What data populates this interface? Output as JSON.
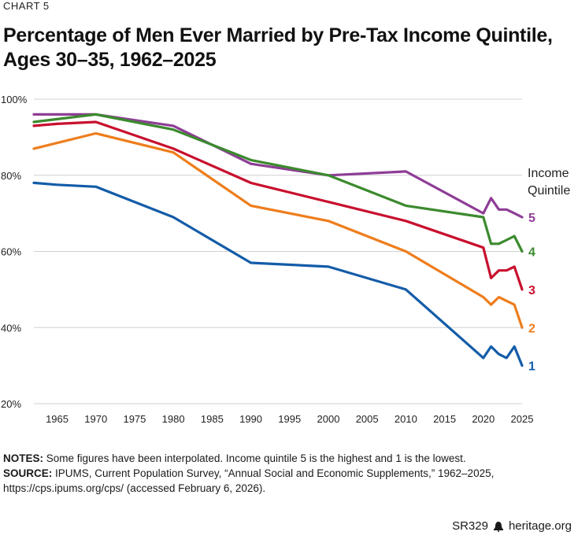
{
  "header": {
    "chart_label": "CHART 5",
    "title": "Percentage of Men Ever Married by Pre-Tax Income Quintile, Ages 30–35, 1962–2025"
  },
  "notes": {
    "notes_label": "NOTES:",
    "notes_text": "Some figures have been interpolated. Income quintile 5 is the highest and 1 is the lowest.",
    "source_label": "SOURCE:",
    "source_text": "IPUMS, Current Population Survey, “Annual Social and Economic Supplements,” 1962–2025, https://cps.ipums.org/cps/ (accessed February 6, 2026)."
  },
  "footer": {
    "report_id": "SR329",
    "site": "heritage.org"
  },
  "chart_data": {
    "type": "line",
    "xlim": [
      1962,
      2025
    ],
    "ylim": [
      20,
      100
    ],
    "x_ticks": [
      1965,
      1970,
      1975,
      1980,
      1985,
      1990,
      1995,
      2000,
      2005,
      2010,
      2015,
      2020,
      2025
    ],
    "y_ticks": [
      20,
      40,
      60,
      80,
      100
    ],
    "y_tick_labels": [
      "20%",
      "40%",
      "60%",
      "80%",
      "100%"
    ],
    "grid": "horizontal",
    "legend_title": "Income Quintile",
    "legend_placement": "right, at line ends",
    "series": [
      {
        "name": "5",
        "color": "#8e3d96",
        "x": [
          1962,
          1970,
          1980,
          1990,
          2000,
          2010,
          2020,
          2021,
          2022,
          2023,
          2024,
          2025
        ],
        "values": [
          96,
          96,
          93,
          83,
          80,
          81,
          70,
          74,
          71,
          71,
          70,
          69
        ]
      },
      {
        "name": "4",
        "color": "#3c8a2e",
        "x": [
          1962,
          1970,
          1980,
          1990,
          2000,
          2010,
          2020,
          2021,
          2022,
          2023,
          2024,
          2025
        ],
        "values": [
          94,
          96,
          92,
          84,
          80,
          72,
          69,
          62,
          62,
          63,
          64,
          60
        ]
      },
      {
        "name": "3",
        "color": "#c8102e",
        "x": [
          1962,
          1965,
          1970,
          1980,
          1990,
          2000,
          2010,
          2020,
          2021,
          2022,
          2023,
          2024,
          2025
        ],
        "values": [
          93,
          93.5,
          94,
          87,
          78,
          73,
          68,
          61,
          53,
          55,
          55,
          56,
          50
        ]
      },
      {
        "name": "2",
        "color": "#ee7d1c",
        "x": [
          1962,
          1970,
          1980,
          1990,
          2000,
          2010,
          2020,
          2021,
          2022,
          2023,
          2024,
          2025
        ],
        "values": [
          87,
          91,
          86,
          72,
          68,
          60,
          48,
          46,
          48,
          47,
          46,
          40
        ]
      },
      {
        "name": "1",
        "color": "#135ca8",
        "x": [
          1962,
          1965,
          1970,
          1980,
          1990,
          2000,
          2010,
          2020,
          2021,
          2022,
          2023,
          2024,
          2025
        ],
        "values": [
          78,
          77.5,
          77,
          69,
          57,
          56,
          50,
          32,
          35,
          33,
          32,
          35,
          30
        ]
      }
    ]
  }
}
